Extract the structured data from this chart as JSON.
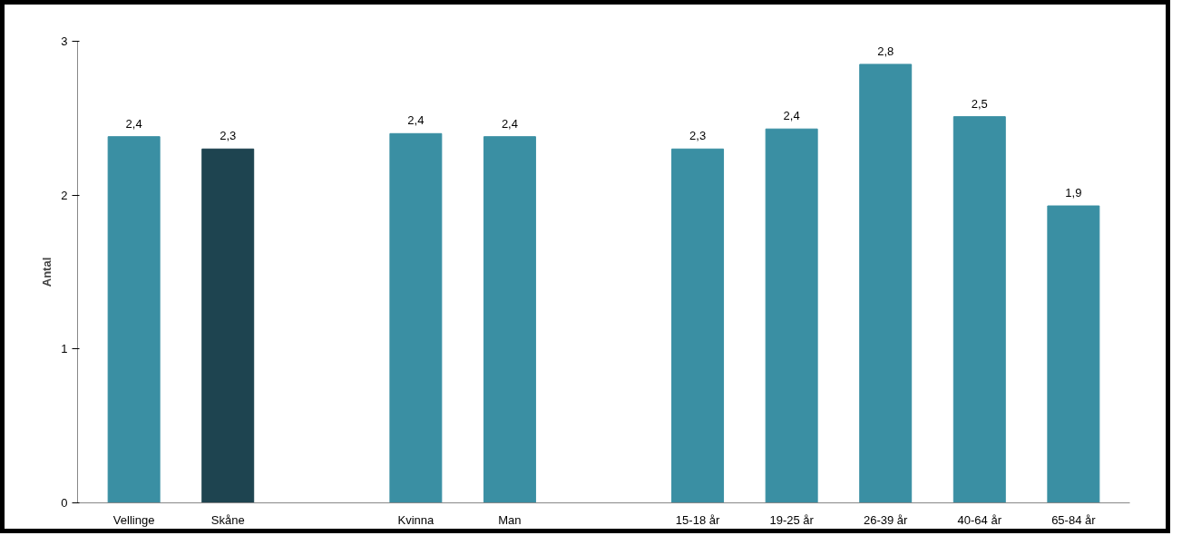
{
  "chart_data": {
    "type": "bar",
    "ylabel": "Antal",
    "categories": [
      "Vellinge",
      "Skåne",
      null,
      "Kvinna",
      "Man",
      null,
      "15-18 år",
      "19-25 år",
      "26-39 år",
      "40-64 år",
      "65-84 år"
    ],
    "values": [
      2.38,
      2.3,
      null,
      2.4,
      2.38,
      null,
      2.3,
      2.43,
      2.85,
      2.51,
      1.93
    ],
    "colors": [
      "#3a8fa3",
      "#1e4450",
      null,
      "#3a8fa3",
      "#3a8fa3",
      null,
      "#3a8fa3",
      "#3a8fa3",
      "#3a8fa3",
      "#3a8fa3",
      "#3a8fa3"
    ],
    "value_labels": [
      "2,4",
      "2,3",
      null,
      "2,4",
      "2,4",
      null,
      "2,3",
      "2,4",
      "2,8",
      "2,5",
      "1,9"
    ],
    "ylim": [
      0,
      3
    ],
    "yticks": [
      0,
      1,
      2,
      3
    ],
    "grid": false
  }
}
